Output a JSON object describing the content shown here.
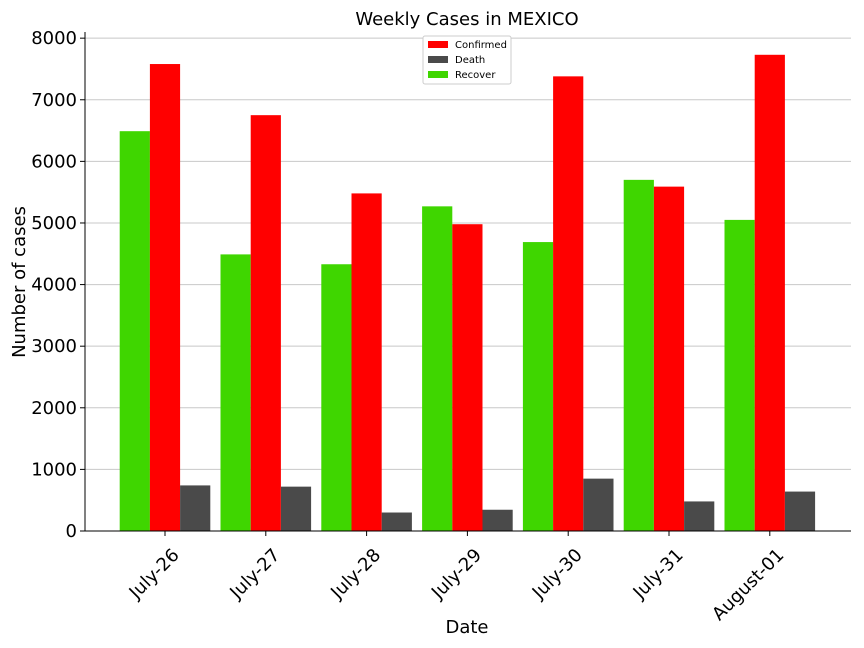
{
  "chart_data": {
    "type": "bar",
    "title": "Weekly Cases in MEXICO",
    "xlabel": "Date",
    "ylabel": "Number of cases",
    "categories": [
      "July-26",
      "July-27",
      "July-28",
      "July-29",
      "July-30",
      "July-31",
      "August-01"
    ],
    "ylim": [
      0,
      8100
    ],
    "yticks": [
      0,
      1000,
      2000,
      3000,
      4000,
      5000,
      6000,
      7000,
      8000
    ],
    "grid": "horizontal",
    "legend_position": "top-center",
    "series": [
      {
        "name": "Recover",
        "color": "#3fd600",
        "values": [
          6490,
          4490,
          4330,
          5270,
          4690,
          5700,
          5050
        ]
      },
      {
        "name": "Confirmed",
        "color": "#ff0000",
        "values": [
          7580,
          6750,
          5480,
          4980,
          7380,
          5590,
          7730
        ]
      },
      {
        "name": "Death",
        "color": "#4a4a4a",
        "values": [
          740,
          720,
          300,
          345,
          850,
          480,
          640
        ]
      }
    ],
    "legend_order": [
      "Confirmed",
      "Death",
      "Recover"
    ]
  }
}
